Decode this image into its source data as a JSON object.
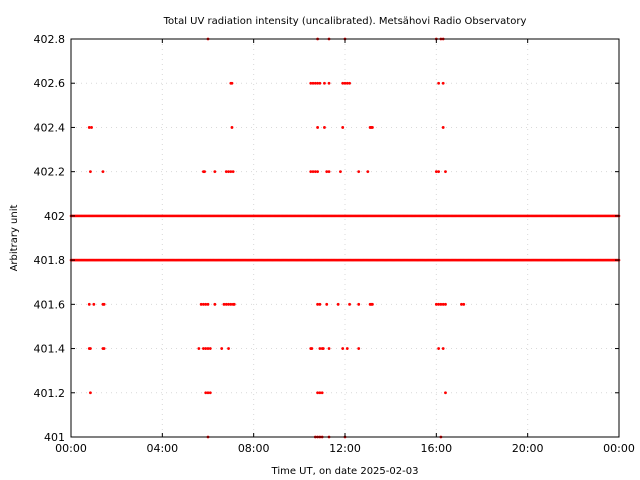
{
  "chart_data": {
    "type": "scatter",
    "title": "Total UV radiation intensity (uncalibrated). Metsähovi Radio Observatory",
    "xlabel": "Time UT, on date 2025-02-03",
    "ylabel": "Arbitrary unit",
    "xlim": [
      0,
      24
    ],
    "ylim": [
      401,
      402.8
    ],
    "x_ticks": [
      0,
      4,
      8,
      12,
      16,
      20,
      24
    ],
    "x_tick_labels": [
      "00:00",
      "04:00",
      "08:00",
      "12:00",
      "16:00",
      "20:00",
      "00:00"
    ],
    "y_ticks": [
      401,
      401.2,
      401.4,
      401.6,
      401.8,
      402,
      402.2,
      402.4,
      402.6,
      402.8
    ],
    "y_tick_labels": [
      "401",
      "401.2",
      "401.4",
      "401.6",
      "401.8",
      "402",
      "402.2",
      "402.4",
      "402.6",
      "402.8"
    ],
    "grid": true,
    "series_color": "#ff0000",
    "series": [
      {
        "dense_levels": [
          {
            "y": 402.0,
            "x_range": [
              0,
              24
            ],
            "step_hours": 0.05
          },
          {
            "y": 401.8,
            "x_range": [
              0,
              24
            ],
            "step_hours": 0.05
          }
        ],
        "points": [
          [
            6.0,
            402.8
          ],
          [
            10.8,
            402.8
          ],
          [
            11.3,
            402.8
          ],
          [
            12.0,
            402.8
          ],
          [
            16.0,
            402.8
          ],
          [
            16.2,
            402.8
          ],
          [
            16.3,
            402.8
          ],
          [
            7.0,
            402.6
          ],
          [
            7.05,
            402.6
          ],
          [
            10.5,
            402.6
          ],
          [
            10.6,
            402.6
          ],
          [
            10.7,
            402.6
          ],
          [
            10.8,
            402.6
          ],
          [
            10.9,
            402.6
          ],
          [
            11.1,
            402.6
          ],
          [
            11.3,
            402.6
          ],
          [
            11.9,
            402.6
          ],
          [
            12.0,
            402.6
          ],
          [
            12.1,
            402.6
          ],
          [
            12.2,
            402.6
          ],
          [
            16.1,
            402.6
          ],
          [
            16.3,
            402.6
          ],
          [
            0.8,
            402.4
          ],
          [
            0.9,
            402.4
          ],
          [
            7.05,
            402.4
          ],
          [
            10.8,
            402.4
          ],
          [
            11.1,
            402.4
          ],
          [
            11.9,
            402.4
          ],
          [
            13.1,
            402.4
          ],
          [
            13.15,
            402.4
          ],
          [
            13.2,
            402.4
          ],
          [
            16.3,
            402.4
          ],
          [
            0.85,
            402.2
          ],
          [
            1.4,
            402.2
          ],
          [
            5.8,
            402.2
          ],
          [
            5.85,
            402.2
          ],
          [
            6.3,
            402.2
          ],
          [
            6.8,
            402.2
          ],
          [
            6.9,
            402.2
          ],
          [
            7.0,
            402.2
          ],
          [
            7.1,
            402.2
          ],
          [
            10.5,
            402.2
          ],
          [
            10.6,
            402.2
          ],
          [
            10.7,
            402.2
          ],
          [
            10.8,
            402.2
          ],
          [
            11.2,
            402.2
          ],
          [
            11.3,
            402.2
          ],
          [
            11.8,
            402.2
          ],
          [
            12.6,
            402.2
          ],
          [
            13.0,
            402.2
          ],
          [
            16.0,
            402.2
          ],
          [
            16.1,
            402.2
          ],
          [
            16.4,
            402.2
          ],
          [
            0.8,
            401.6
          ],
          [
            1.0,
            401.6
          ],
          [
            1.4,
            401.6
          ],
          [
            1.45,
            401.6
          ],
          [
            5.7,
            401.6
          ],
          [
            5.8,
            401.6
          ],
          [
            5.9,
            401.6
          ],
          [
            6.0,
            401.6
          ],
          [
            6.3,
            401.6
          ],
          [
            6.7,
            401.6
          ],
          [
            6.8,
            401.6
          ],
          [
            6.9,
            401.6
          ],
          [
            7.0,
            401.6
          ],
          [
            7.1,
            401.6
          ],
          [
            7.15,
            401.6
          ],
          [
            10.8,
            401.6
          ],
          [
            10.9,
            401.6
          ],
          [
            11.2,
            401.6
          ],
          [
            11.7,
            401.6
          ],
          [
            12.2,
            401.6
          ],
          [
            12.6,
            401.6
          ],
          [
            13.1,
            401.6
          ],
          [
            13.15,
            401.6
          ],
          [
            13.2,
            401.6
          ],
          [
            16.0,
            401.6
          ],
          [
            16.1,
            401.6
          ],
          [
            16.2,
            401.6
          ],
          [
            16.3,
            401.6
          ],
          [
            16.4,
            401.6
          ],
          [
            17.1,
            401.6
          ],
          [
            17.2,
            401.6
          ],
          [
            0.8,
            401.4
          ],
          [
            0.85,
            401.4
          ],
          [
            1.4,
            401.4
          ],
          [
            1.45,
            401.4
          ],
          [
            5.6,
            401.4
          ],
          [
            5.8,
            401.4
          ],
          [
            5.9,
            401.4
          ],
          [
            6.0,
            401.4
          ],
          [
            6.1,
            401.4
          ],
          [
            6.6,
            401.4
          ],
          [
            6.9,
            401.4
          ],
          [
            10.5,
            401.4
          ],
          [
            10.55,
            401.4
          ],
          [
            10.9,
            401.4
          ],
          [
            11.0,
            401.4
          ],
          [
            11.05,
            401.4
          ],
          [
            11.3,
            401.4
          ],
          [
            11.9,
            401.4
          ],
          [
            12.1,
            401.4
          ],
          [
            12.6,
            401.4
          ],
          [
            16.1,
            401.4
          ],
          [
            16.3,
            401.4
          ],
          [
            0.85,
            401.2
          ],
          [
            5.9,
            401.2
          ],
          [
            6.0,
            401.2
          ],
          [
            6.1,
            401.2
          ],
          [
            10.8,
            401.2
          ],
          [
            10.9,
            401.2
          ],
          [
            11.0,
            401.2
          ],
          [
            16.4,
            401.2
          ],
          [
            6.0,
            401.0
          ],
          [
            10.7,
            401.0
          ],
          [
            10.8,
            401.0
          ],
          [
            10.9,
            401.0
          ],
          [
            11.0,
            401.0
          ],
          [
            11.3,
            401.0
          ],
          [
            12.0,
            401.0
          ],
          [
            16.2,
            401.0
          ]
        ]
      }
    ]
  }
}
